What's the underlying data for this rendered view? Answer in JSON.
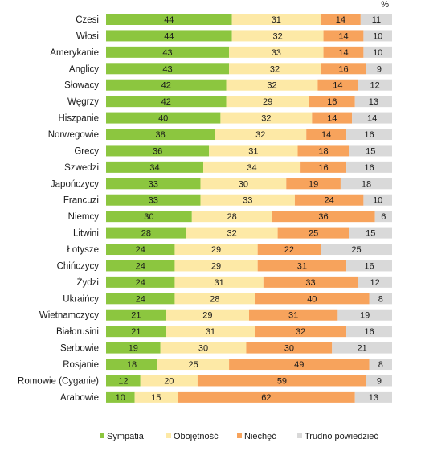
{
  "chart_data": {
    "type": "bar",
    "orientation": "horizontal",
    "stacked": true,
    "normalized_percent": true,
    "unit_label": "%",
    "categories": [
      "Czesi",
      "Włosi",
      "Amerykanie",
      "Anglicy",
      "Słowacy",
      "Węgrzy",
      "Hiszpanie",
      "Norwegowie",
      "Grecy",
      "Szwedzi",
      "Japończycy",
      "Francuzi",
      "Niemcy",
      "Litwini",
      "Łotysze",
      "Chińczycy",
      "Żydzi",
      "Ukraińcy",
      "Wietnamczycy",
      "Białorusini",
      "Serbowie",
      "Rosjanie",
      "Romowie (Cyganie)",
      "Arabowie"
    ],
    "series": [
      {
        "name": "Sympatia",
        "color": "#8cc63f",
        "values": [
          44,
          44,
          43,
          43,
          42,
          42,
          40,
          38,
          36,
          34,
          33,
          33,
          30,
          28,
          24,
          24,
          24,
          24,
          21,
          21,
          19,
          18,
          12,
          10
        ]
      },
      {
        "name": "Obojętność",
        "color": "#fde9a6",
        "values": [
          31,
          32,
          33,
          32,
          32,
          29,
          32,
          32,
          31,
          34,
          30,
          33,
          28,
          32,
          29,
          29,
          31,
          28,
          29,
          31,
          30,
          25,
          20,
          15
        ]
      },
      {
        "name": "Niechęć",
        "color": "#f7a35c",
        "values": [
          14,
          14,
          14,
          16,
          14,
          16,
          14,
          14,
          18,
          16,
          19,
          24,
          36,
          25,
          22,
          31,
          33,
          40,
          31,
          32,
          30,
          49,
          59,
          62
        ]
      },
      {
        "name": "Trudno powiedzieć",
        "color": "#d9d9d9",
        "values": [
          11,
          10,
          10,
          9,
          12,
          13,
          14,
          16,
          15,
          16,
          18,
          10,
          6,
          15,
          25,
          16,
          12,
          8,
          19,
          16,
          21,
          8,
          9,
          13
        ]
      }
    ],
    "legend_position": "bottom",
    "grid": false
  }
}
